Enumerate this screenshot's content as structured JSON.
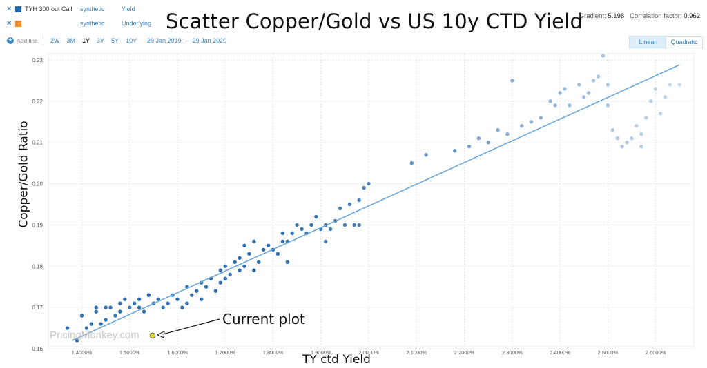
{
  "header": {
    "series": [
      {
        "close": "×",
        "swatch": "#2166ac",
        "name": "TYH 300 out Call",
        "source": "synthetic",
        "field": "Yield"
      },
      {
        "close": "×",
        "swatch": "#f28e2b",
        "name": "",
        "source": "synthetic",
        "field": "Underlying"
      }
    ],
    "title": "Scatter Copper/Gold vs US 10y CTD Yield",
    "stats": {
      "gradient_label": "Gradient:",
      "gradient_value": "5.198",
      "corr_label": "Correlation factor:",
      "corr_value": "0.962"
    },
    "add_line": "Add line",
    "ranges": [
      "2W",
      "3M",
      "1Y",
      "3Y",
      "5Y",
      "10Y"
    ],
    "active_range": "1Y",
    "date_from": "29 Jan 2019",
    "date_sep": "–",
    "date_to": "29 Jan 2020",
    "fit_buttons": [
      "Linear",
      "Quadratic"
    ]
  },
  "annotation": "Current plot",
  "watermark": "PricingMonkey.com",
  "colors": {
    "points": "#2166ac",
    "fit_line": "#6aa6d6",
    "current": "#e3d72c",
    "grid": "#e3e3e3"
  },
  "chart_data": {
    "type": "scatter",
    "title": "Scatter Copper/Gold vs US 10y CTD Yield",
    "xlabel": "TY ctd  Yield",
    "ylabel": "Copper/Gold Ratio",
    "xlim": [
      1.33,
      2.68
    ],
    "ylim": [
      0.1605,
      0.2315
    ],
    "x_ticks": [
      1.4,
      1.5,
      1.6,
      1.7,
      1.8,
      1.9,
      2.0,
      2.1,
      2.2,
      2.3,
      2.4,
      2.5,
      2.6
    ],
    "x_tick_labels": [
      "1.4000%",
      "1.5000%",
      "1.6000%",
      "1.7000%",
      "1.8000%",
      "1.9000%",
      "2.0000%",
      "2.1000%",
      "2.2000%",
      "2.3000%",
      "2.4000%",
      "2.5000%",
      "2.6000%"
    ],
    "y_ticks": [
      0.16,
      0.17,
      0.18,
      0.19,
      0.2,
      0.21,
      0.22,
      0.23
    ],
    "y_tick_labels": [
      "0.16",
      "0.17",
      "0.18",
      "0.19",
      "0.20",
      "0.21",
      "0.22",
      "0.23"
    ],
    "grid": true,
    "fit": {
      "type": "linear",
      "x": [
        1.38,
        2.65
      ],
      "y": [
        0.162,
        0.2288
      ]
    },
    "current": {
      "x": 1.548,
      "y": 0.1632
    },
    "series": [
      {
        "values": [
          [
            1.37,
            0.165
          ],
          [
            1.39,
            0.162
          ],
          [
            1.4,
            0.168
          ],
          [
            1.41,
            0.165
          ],
          [
            1.42,
            0.166
          ],
          [
            1.43,
            0.169
          ],
          [
            1.43,
            0.17
          ],
          [
            1.44,
            0.166
          ],
          [
            1.45,
            0.167
          ],
          [
            1.45,
            0.17
          ],
          [
            1.46,
            0.17
          ],
          [
            1.47,
            0.168
          ],
          [
            1.48,
            0.171
          ],
          [
            1.48,
            0.169
          ],
          [
            1.49,
            0.172
          ],
          [
            1.5,
            0.17
          ],
          [
            1.51,
            0.171
          ],
          [
            1.52,
            0.172
          ],
          [
            1.52,
            0.17
          ],
          [
            1.53,
            0.169
          ],
          [
            1.54,
            0.173
          ],
          [
            1.55,
            0.171
          ],
          [
            1.56,
            0.172
          ],
          [
            1.57,
            0.17
          ],
          [
            1.58,
            0.171
          ],
          [
            1.59,
            0.173
          ],
          [
            1.6,
            0.172
          ],
          [
            1.61,
            0.17
          ],
          [
            1.62,
            0.171
          ],
          [
            1.62,
            0.175
          ],
          [
            1.63,
            0.173
          ],
          [
            1.64,
            0.174
          ],
          [
            1.65,
            0.172
          ],
          [
            1.65,
            0.176
          ],
          [
            1.66,
            0.175
          ],
          [
            1.67,
            0.177
          ],
          [
            1.68,
            0.174
          ],
          [
            1.69,
            0.176
          ],
          [
            1.69,
            0.179
          ],
          [
            1.7,
            0.177
          ],
          [
            1.7,
            0.18
          ],
          [
            1.71,
            0.178
          ],
          [
            1.72,
            0.181
          ],
          [
            1.73,
            0.182
          ],
          [
            1.73,
            0.179
          ],
          [
            1.74,
            0.18
          ],
          [
            1.74,
            0.185
          ],
          [
            1.75,
            0.183
          ],
          [
            1.76,
            0.186
          ],
          [
            1.76,
            0.179
          ],
          [
            1.77,
            0.181
          ],
          [
            1.78,
            0.184
          ],
          [
            1.79,
            0.185
          ],
          [
            1.8,
            0.184
          ],
          [
            1.81,
            0.183
          ],
          [
            1.82,
            0.186
          ],
          [
            1.82,
            0.188
          ],
          [
            1.83,
            0.186
          ],
          [
            1.83,
            0.181
          ],
          [
            1.84,
            0.188
          ],
          [
            1.85,
            0.19
          ],
          [
            1.86,
            0.189
          ],
          [
            1.87,
            0.188
          ],
          [
            1.88,
            0.19
          ],
          [
            1.89,
            0.192
          ],
          [
            1.9,
            0.189
          ],
          [
            1.91,
            0.19
          ],
          [
            1.91,
            0.186
          ],
          [
            1.92,
            0.189
          ],
          [
            1.93,
            0.191
          ],
          [
            1.94,
            0.194
          ],
          [
            1.95,
            0.19
          ],
          [
            1.96,
            0.195
          ],
          [
            1.97,
            0.19
          ],
          [
            1.98,
            0.196
          ],
          [
            1.98,
            0.19
          ],
          [
            1.99,
            0.199
          ],
          [
            2.0,
            0.2
          ],
          [
            2.09,
            0.205
          ],
          [
            2.12,
            0.207
          ],
          [
            2.18,
            0.208
          ],
          [
            2.21,
            0.209
          ],
          [
            2.23,
            0.211
          ],
          [
            2.25,
            0.21
          ],
          [
            2.27,
            0.213
          ],
          [
            2.29,
            0.212
          ],
          [
            2.3,
            0.225
          ],
          [
            2.32,
            0.214
          ],
          [
            2.34,
            0.215
          ],
          [
            2.36,
            0.216
          ],
          [
            2.38,
            0.22
          ],
          [
            2.39,
            0.219
          ],
          [
            2.4,
            0.222
          ],
          [
            2.41,
            0.223
          ],
          [
            2.42,
            0.219
          ],
          [
            2.44,
            0.224
          ],
          [
            2.45,
            0.221
          ],
          [
            2.46,
            0.222
          ],
          [
            2.47,
            0.225
          ],
          [
            2.48,
            0.226
          ],
          [
            2.49,
            0.231
          ],
          [
            2.5,
            0.224
          ],
          [
            2.5,
            0.219
          ],
          [
            2.51,
            0.213
          ],
          [
            2.52,
            0.211
          ],
          [
            2.53,
            0.209
          ],
          [
            2.54,
            0.21
          ],
          [
            2.55,
            0.211
          ],
          [
            2.56,
            0.214
          ],
          [
            2.57,
            0.209
          ],
          [
            2.57,
            0.212
          ],
          [
            2.58,
            0.216
          ],
          [
            2.59,
            0.22
          ],
          [
            2.6,
            0.223
          ],
          [
            2.61,
            0.217
          ],
          [
            2.62,
            0.221
          ],
          [
            2.63,
            0.224
          ],
          [
            2.65,
            0.224
          ]
        ]
      }
    ]
  }
}
